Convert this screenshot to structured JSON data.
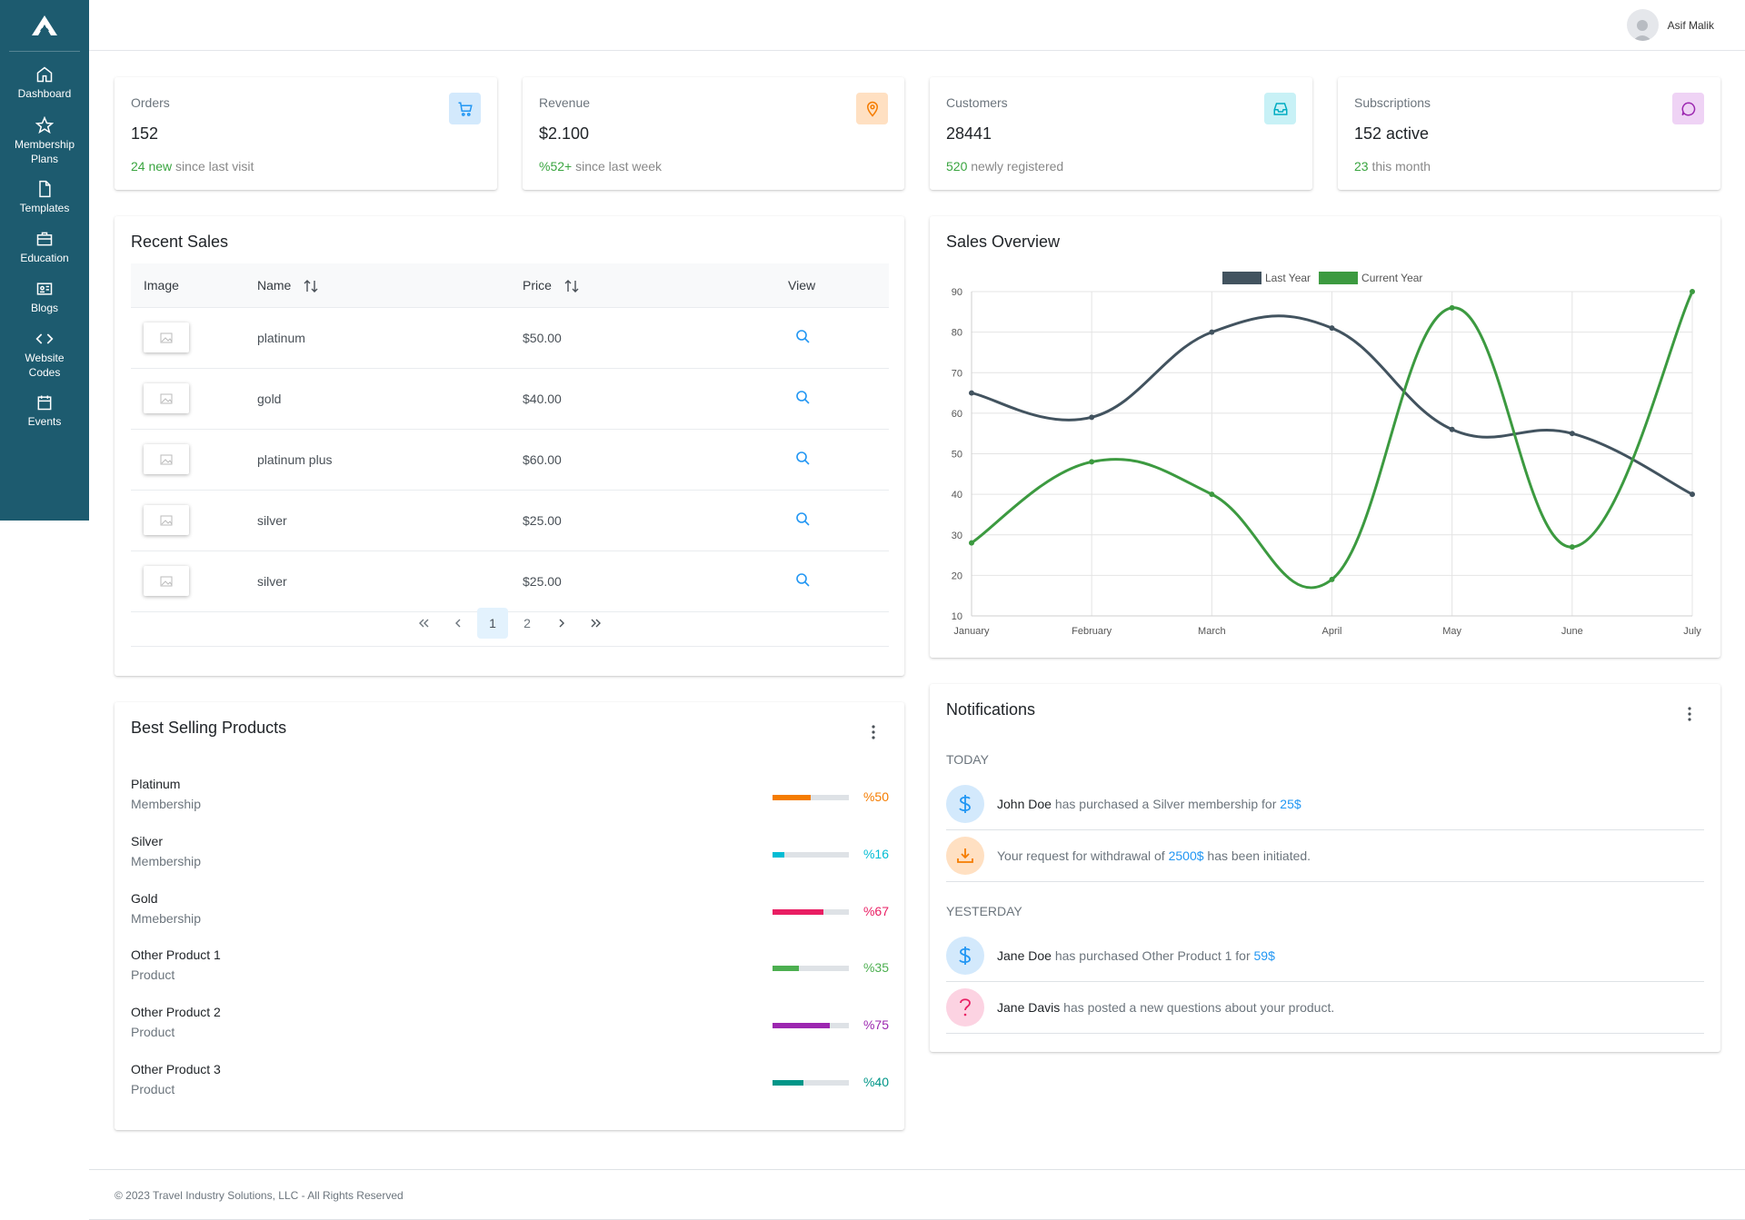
{
  "sidebar": {
    "items": [
      {
        "label": "Dashboard",
        "icon": "home-icon"
      },
      {
        "label": "Membership Plans",
        "icon": "star-icon"
      },
      {
        "label": "Templates",
        "icon": "file-icon"
      },
      {
        "label": "Education",
        "icon": "briefcase-icon"
      },
      {
        "label": "Blogs",
        "icon": "id-card-icon"
      },
      {
        "label": "Website Codes",
        "icon": "code-icon"
      },
      {
        "label": "Events",
        "icon": "calendar-icon"
      }
    ]
  },
  "header": {
    "user_name": "Asif Malik"
  },
  "stats": [
    {
      "label": "Orders",
      "value": "152",
      "highlight": "24 new",
      "rest": "since last visit",
      "icon": "cart-icon",
      "color": "#2196f3",
      "bg": "#d3e9fc"
    },
    {
      "label": "Revenue",
      "value": "$2.100",
      "highlight": "%52+",
      "rest": "since last week",
      "icon": "map-pin-icon",
      "color": "#f57c00",
      "bg": "#ffe0c2"
    },
    {
      "label": "Customers",
      "value": "28441",
      "highlight": "520",
      "rest": "newly registered",
      "icon": "inbox-icon",
      "color": "#00acc1",
      "bg": "#c8f1f6"
    },
    {
      "label": "Subscriptions",
      "value": "152 active",
      "highlight": "23",
      "rest": "this month",
      "icon": "comment-icon",
      "color": "#9c27b0",
      "bg": "#efd3f5"
    }
  ],
  "recent_sales": {
    "title": "Recent Sales",
    "columns": [
      "Image",
      "Name",
      "Price",
      "View"
    ],
    "rows": [
      {
        "name": "platinum",
        "price": "$50.00"
      },
      {
        "name": "gold",
        "price": "$40.00"
      },
      {
        "name": "platinum plus",
        "price": "$60.00"
      },
      {
        "name": "silver",
        "price": "$25.00"
      },
      {
        "name": "silver",
        "price": "$25.00"
      }
    ],
    "pagination": {
      "pages": [
        "1",
        "2"
      ],
      "current": "1"
    }
  },
  "best_selling": {
    "title": "Best Selling Products",
    "items": [
      {
        "name": "Platinum",
        "category": "Membership",
        "pct": 50,
        "label": "%50",
        "color": "#f57c00"
      },
      {
        "name": "Silver",
        "category": "Membership",
        "pct": 16,
        "label": "%16",
        "color": "#00bcd4"
      },
      {
        "name": "Gold",
        "category": "Mmebership",
        "pct": 67,
        "label": "%67",
        "color": "#e91e63"
      },
      {
        "name": "Other Product 1",
        "category": "Product",
        "pct": 35,
        "label": "%35",
        "color": "#4caf50"
      },
      {
        "name": "Other Product 2",
        "category": "Product",
        "pct": 75,
        "label": "%75",
        "color": "#9c27b0"
      },
      {
        "name": "Other Product 3",
        "category": "Product",
        "pct": 40,
        "label": "%40",
        "color": "#009688"
      }
    ]
  },
  "sales_overview": {
    "title": "Sales Overview"
  },
  "chart_data": {
    "type": "line",
    "title": "Sales Overview",
    "categories": [
      "January",
      "February",
      "March",
      "April",
      "May",
      "June",
      "July"
    ],
    "series": [
      {
        "name": "Last Year",
        "values": [
          65,
          59,
          80,
          81,
          56,
          55,
          40
        ],
        "color": "#42535f"
      },
      {
        "name": "Current Year",
        "values": [
          28,
          48,
          40,
          19,
          86,
          27,
          90
        ],
        "color": "#3c9a40"
      }
    ],
    "ylim": [
      10,
      90
    ],
    "yticks": [
      10,
      20,
      30,
      40,
      50,
      60,
      70,
      80,
      90
    ],
    "legend": "top",
    "grid": true
  },
  "notifications": {
    "title": "Notifications",
    "today_label": "TODAY",
    "yesterday_label": "YESTERDAY",
    "today": [
      {
        "who": "John Doe",
        "text": " has purchased a Silver membership for ",
        "amount": "25$",
        "icon": "dollar-icon",
        "color": "#2196f3",
        "bg": "#d3e9fc"
      },
      {
        "who": "",
        "text": "Your request for withdrawal of ",
        "amount": "2500$",
        "tail": " has been initiated.",
        "icon": "download-icon",
        "color": "#f57c00",
        "bg": "#ffe0c2"
      }
    ],
    "yesterday": [
      {
        "who": "Jane Doe",
        "text": " has purchased Other Product 1 for ",
        "amount": "59$",
        "icon": "dollar-icon",
        "color": "#2196f3",
        "bg": "#d3e9fc"
      },
      {
        "who": "Jane Davis",
        "text": " has posted a new questions about your product.",
        "amount": "",
        "icon": "question-icon",
        "color": "#e91e63",
        "bg": "#fcd3e2"
      }
    ]
  },
  "footer": {
    "text": "© 2023 Travel Industry Solutions, LLC - All Rights Reserved"
  }
}
